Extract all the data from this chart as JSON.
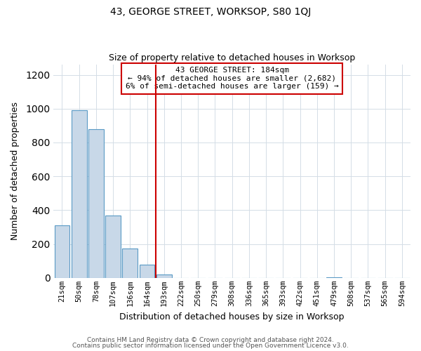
{
  "title": "43, GEORGE STREET, WORKSOP, S80 1QJ",
  "subtitle": "Size of property relative to detached houses in Worksop",
  "xlabel": "Distribution of detached houses by size in Worksop",
  "ylabel": "Number of detached properties",
  "bar_labels": [
    "21sqm",
    "50sqm",
    "78sqm",
    "107sqm",
    "136sqm",
    "164sqm",
    "193sqm",
    "222sqm",
    "250sqm",
    "279sqm",
    "308sqm",
    "336sqm",
    "365sqm",
    "393sqm",
    "422sqm",
    "451sqm",
    "479sqm",
    "508sqm",
    "537sqm",
    "565sqm",
    "594sqm"
  ],
  "bar_values": [
    310,
    990,
    880,
    370,
    175,
    80,
    20,
    0,
    0,
    0,
    0,
    0,
    0,
    0,
    0,
    0,
    5,
    0,
    0,
    0,
    0
  ],
  "bar_color": "#c8d8e8",
  "bar_edge_color": "#5a9ac5",
  "vline_x": 5.5,
  "vline_color": "#cc0000",
  "annotation_title": "43 GEORGE STREET: 184sqm",
  "annotation_line1": "← 94% of detached houses are smaller (2,682)",
  "annotation_line2": "6% of semi-detached houses are larger (159) →",
  "annotation_box_color": "#cc0000",
  "ylim": [
    0,
    1260
  ],
  "yticks": [
    0,
    200,
    400,
    600,
    800,
    1000,
    1200
  ],
  "footer1": "Contains HM Land Registry data © Crown copyright and database right 2024.",
  "footer2": "Contains public sector information licensed under the Open Government Licence v3.0.",
  "background_color": "#ffffff",
  "grid_color": "#d4dde6"
}
